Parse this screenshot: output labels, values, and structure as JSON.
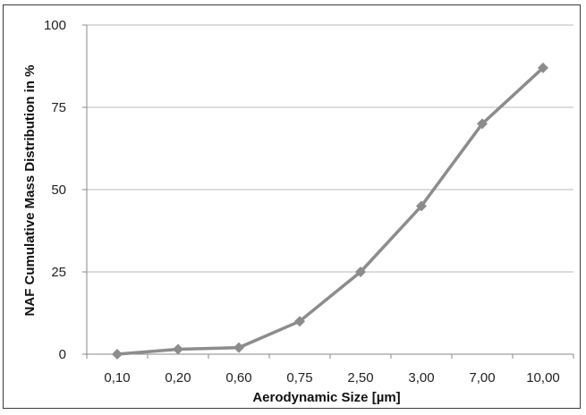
{
  "chart_data": {
    "type": "line",
    "title": "",
    "xlabel": "Aerodynamic Size [µm]",
    "ylabel": "NAF Cumulative Mass Distribution in %",
    "categories": [
      "0,10",
      "0,20",
      "0,60",
      "0,75",
      "2,50",
      "3,00",
      "7,00",
      "10,00"
    ],
    "series": [
      {
        "values": [
          0,
          1.5,
          2,
          10,
          25,
          45,
          70,
          87
        ],
        "color": "#8c8c8c",
        "marker": "diamond"
      }
    ],
    "ylim": [
      0,
      100
    ],
    "yticks": [
      "0",
      "25",
      "50",
      "75",
      "100"
    ],
    "grid": "horizontal",
    "legend": "none"
  }
}
